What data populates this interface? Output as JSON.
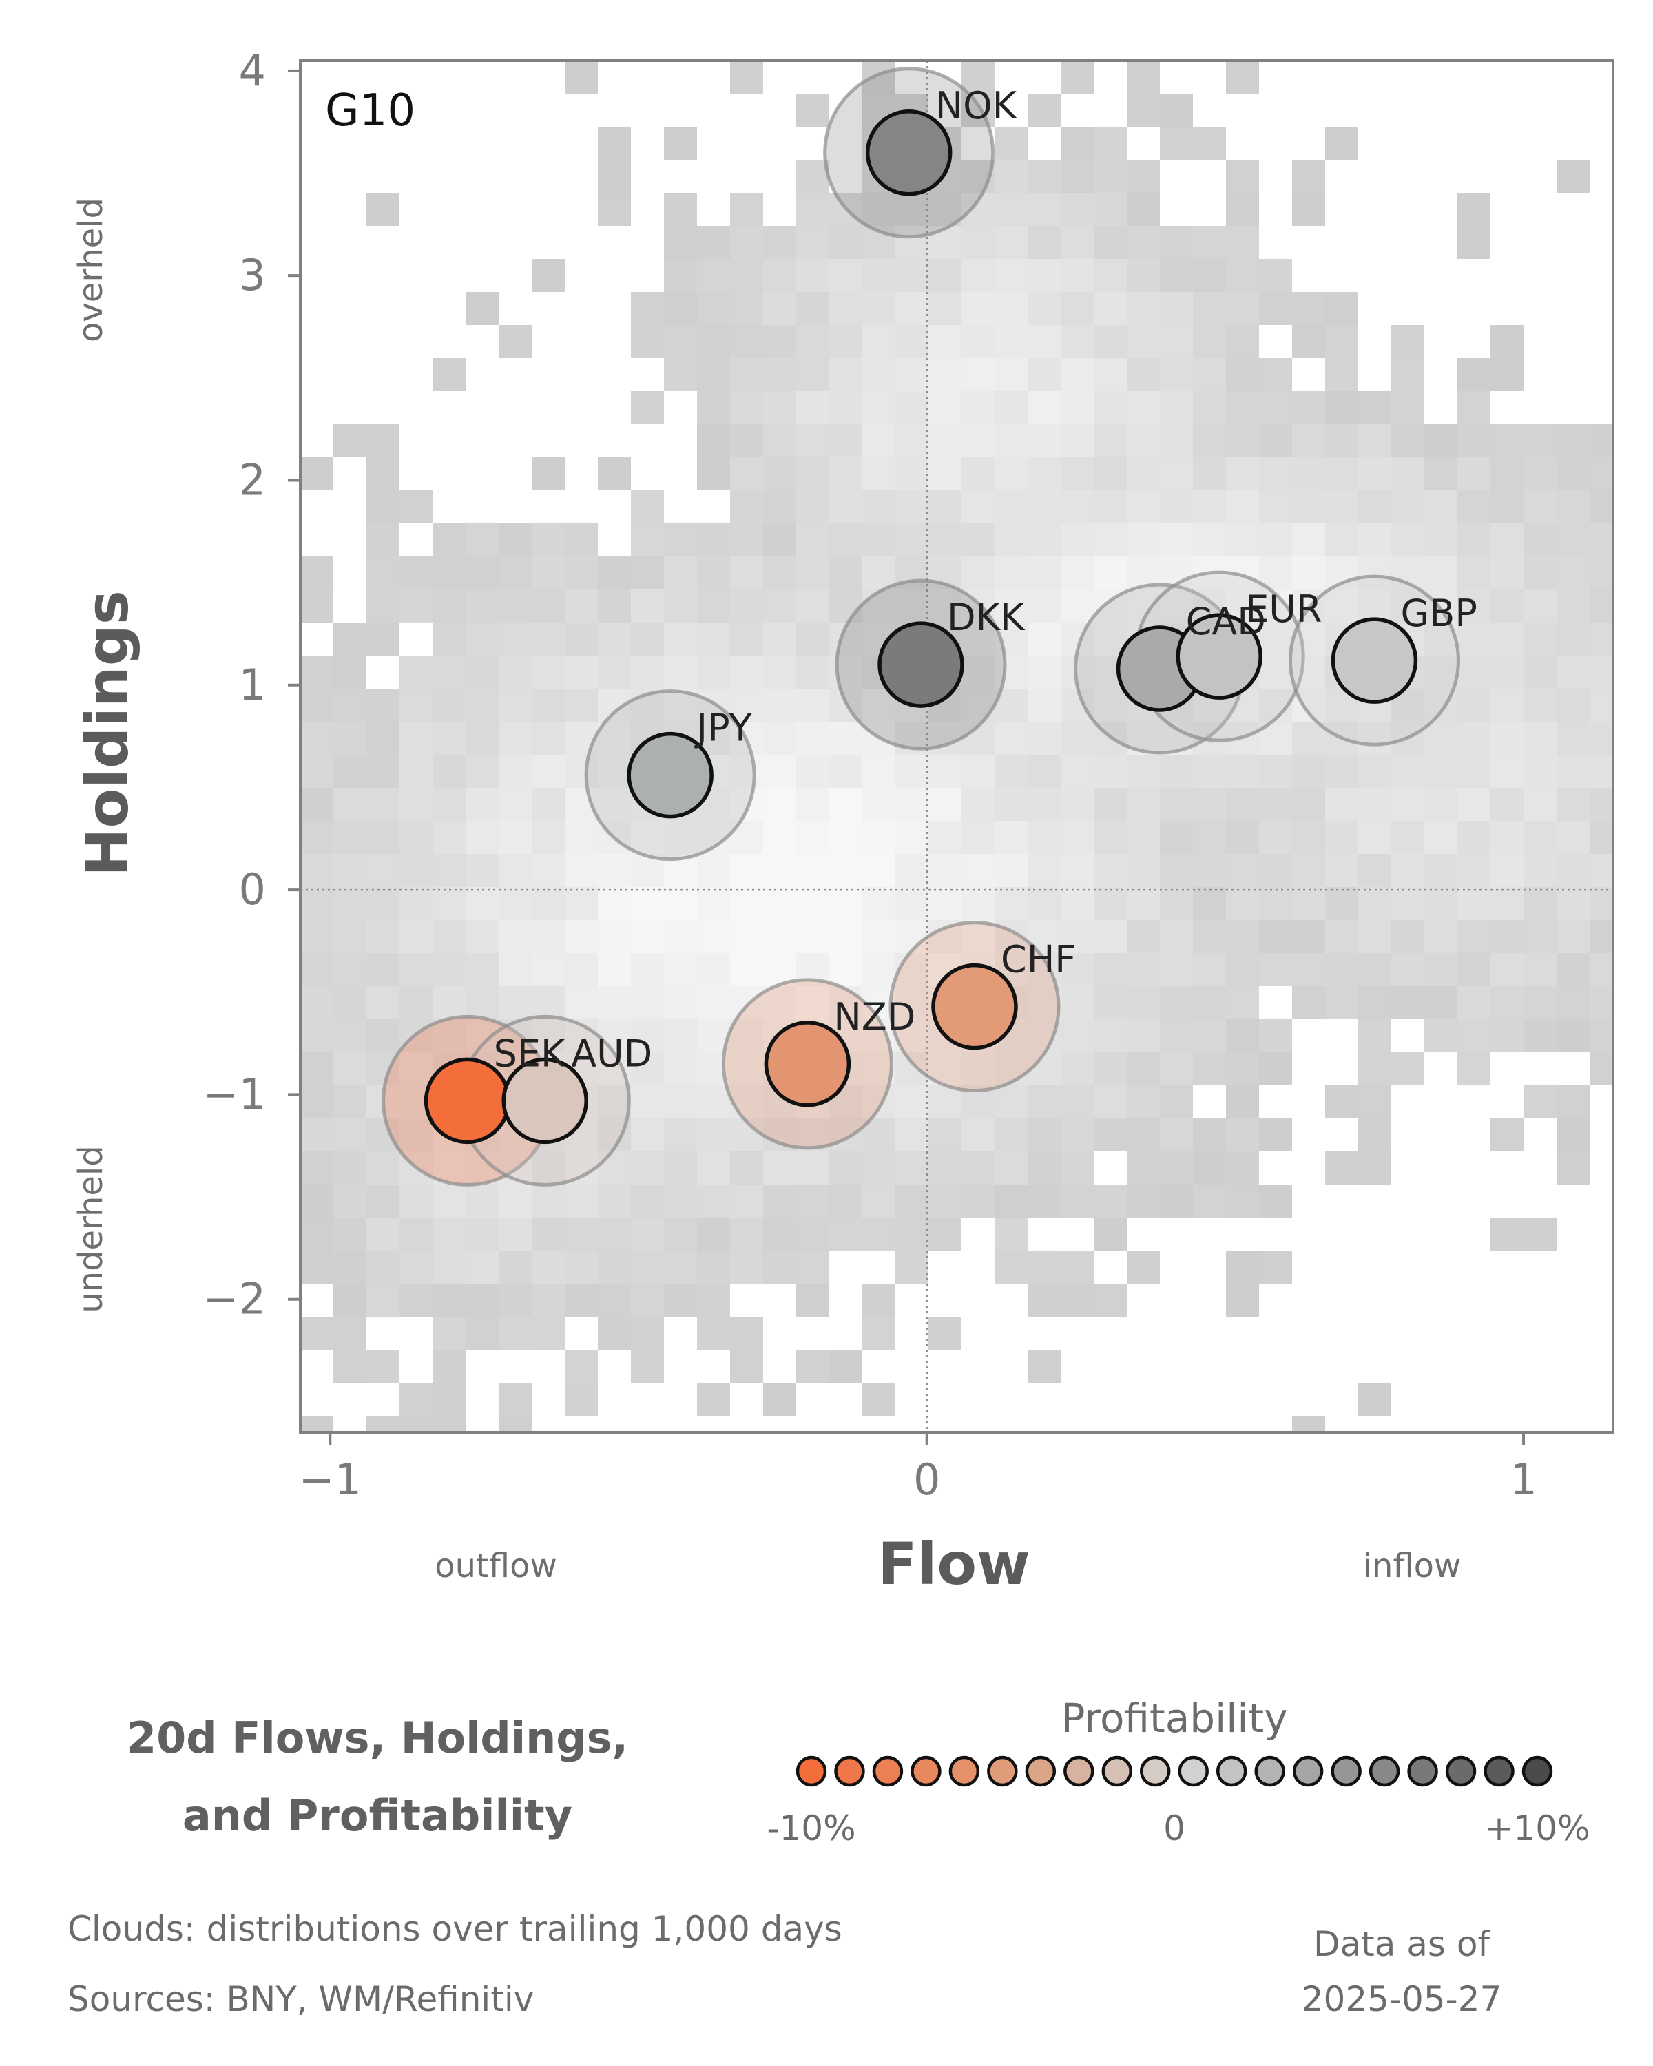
{
  "chart_data": {
    "type": "scatter",
    "panel_label": "G10",
    "xlabel": "Flow",
    "ylabel": "Holdings",
    "x_sublabels": {
      "left": "outflow",
      "right": "inflow"
    },
    "y_sublabels": {
      "top": "overheld",
      "bottom": "underheld"
    },
    "xlim": [
      -1.05,
      1.15
    ],
    "ylim": [
      -2.65,
      4.05
    ],
    "x_ticks": [
      -1,
      0,
      1
    ],
    "x_tick_labels": [
      "−1",
      "0",
      "1"
    ],
    "y_ticks": [
      -2,
      -1,
      0,
      1,
      2,
      3,
      4
    ],
    "y_tick_labels": [
      "−2",
      "−1",
      "0",
      "1",
      "2",
      "3",
      "4"
    ],
    "grid": false,
    "reference_lines": {
      "x": 0,
      "y": 0
    },
    "points": [
      {
        "label": "NOK",
        "x": -0.03,
        "y": 3.6,
        "color": "#858585"
      },
      {
        "label": "DKK",
        "x": -0.01,
        "y": 1.1,
        "color": "#7b7b7b"
      },
      {
        "label": "CAD",
        "x": 0.39,
        "y": 1.08,
        "color": "#a9aaab"
      },
      {
        "label": "EUR",
        "x": 0.49,
        "y": 1.14,
        "color": "#c2c4c4"
      },
      {
        "label": "GBP",
        "x": 0.75,
        "y": 1.12,
        "color": "#c6c8c8"
      },
      {
        "label": "JPY",
        "x": -0.43,
        "y": 0.56,
        "color": "#adb0b0"
      },
      {
        "label": "CHF",
        "x": 0.08,
        "y": -0.57,
        "color": "#e39a77"
      },
      {
        "label": "NZD",
        "x": -0.2,
        "y": -0.85,
        "color": "#e39470"
      },
      {
        "label": "SEK",
        "x": -0.77,
        "y": -1.03,
        "color": "#f46e3c"
      },
      {
        "label": "AUD",
        "x": -0.64,
        "y": -1.03,
        "color": "#d9c6bd"
      }
    ]
  },
  "title_lines": [
    "20d Flows, Holdings,",
    "and Profitability"
  ],
  "legend": {
    "title": "Profitability",
    "tick_labels": [
      "-10%",
      "0",
      "+10%"
    ],
    "colors": [
      "#f46e3c",
      "#f07749",
      "#ec7f54",
      "#e8885f",
      "#e4916b",
      "#e09b78",
      "#dba688",
      "#d7b2a0",
      "#d5c0b5",
      "#d4cbc5",
      "#d0d1d1",
      "#c2c4c4",
      "#b3b5b5",
      "#a4a5a6",
      "#959697",
      "#878888",
      "#797979",
      "#6b6b6c",
      "#5b5b5c",
      "#4b4b4c"
    ]
  },
  "footer": {
    "clouds": "Clouds:  distributions over trailing 1,000 days",
    "sources": "Sources:  BNY, WM/Refinitiv",
    "data_as_of": "Data as of",
    "date": "2025-05-27"
  }
}
